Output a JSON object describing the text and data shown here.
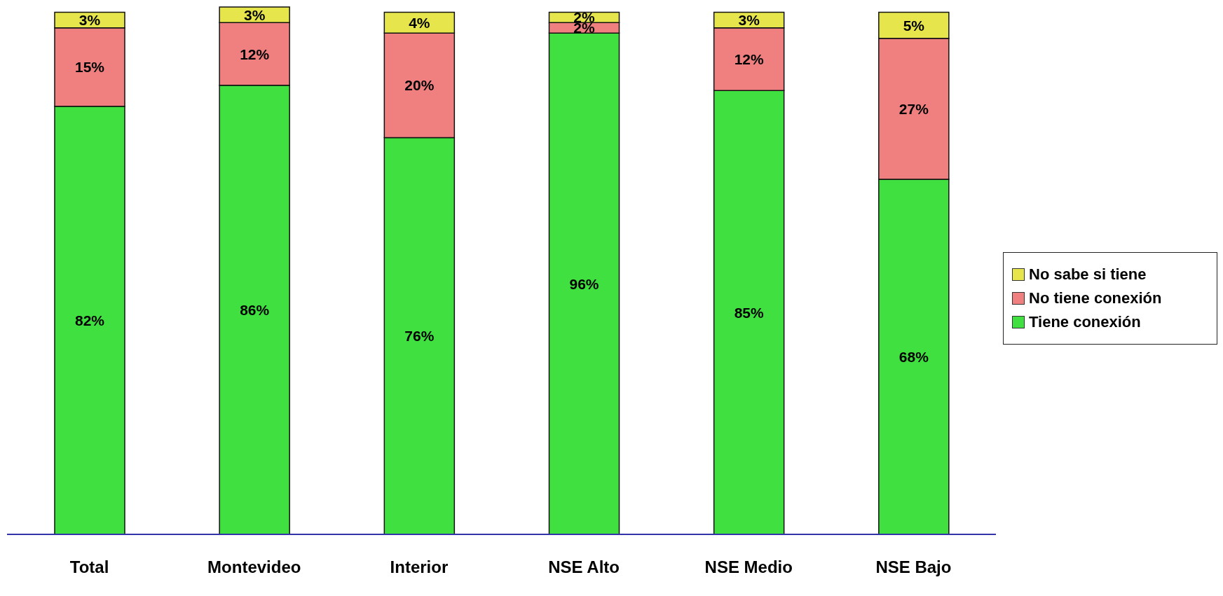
{
  "chart_data": {
    "type": "bar",
    "stacked": true,
    "categories": [
      "Total",
      "Montevideo",
      "Interior",
      "NSE Alto",
      "NSE Medio",
      "NSE Bajo"
    ],
    "series": [
      {
        "name": "Tiene conexión",
        "color": "#3fe03f",
        "values": [
          82,
          86,
          76,
          96,
          85,
          68
        ],
        "value_labels": [
          "82%",
          "86%",
          "76%",
          "96%",
          "85%",
          "68%"
        ]
      },
      {
        "name": "No tiene conexión",
        "color": "#f08080",
        "values": [
          15,
          12,
          20,
          2,
          12,
          27
        ],
        "value_labels": [
          "15%",
          "12%",
          "20%",
          "2%",
          "12%",
          "27%"
        ]
      },
      {
        "name": "No sabe si tiene",
        "color": "#e6e64c",
        "values": [
          3,
          3,
          4,
          2,
          3,
          5
        ],
        "value_labels": [
          "3%",
          "3%",
          "4%",
          "2%",
          "3%",
          "5%"
        ]
      }
    ],
    "legend": "right"
  }
}
